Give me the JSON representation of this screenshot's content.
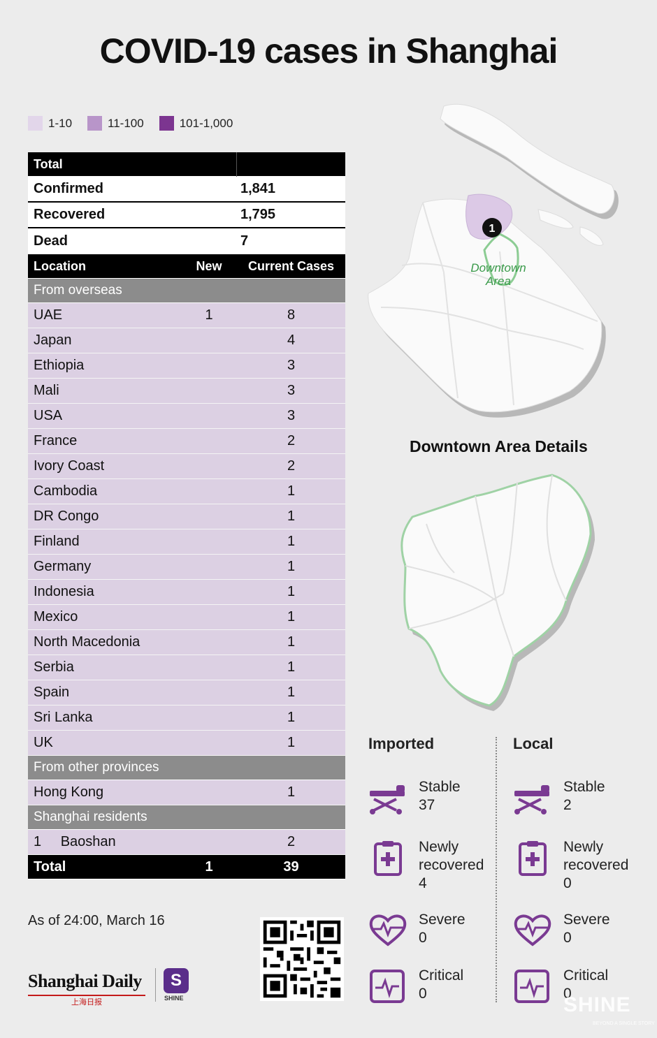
{
  "title": "COVID-19 cases in Shanghai",
  "legend": [
    {
      "label": "1-10",
      "color": "#e2d6ea"
    },
    {
      "label": "11-100",
      "color": "#b895c9"
    },
    {
      "label": "101-1,000",
      "color": "#7c3590"
    }
  ],
  "summary": {
    "header": "Total",
    "rows": [
      {
        "label": "Confirmed",
        "value": "1,841"
      },
      {
        "label": "Recovered",
        "value": "1,795"
      },
      {
        "label": "Dead",
        "value": "7"
      }
    ]
  },
  "columns": {
    "location": "Location",
    "new": "New",
    "current": "Current Cases"
  },
  "overseas": {
    "heading": "From overseas",
    "rows": [
      {
        "name": "UAE",
        "new": "1",
        "current": "8"
      },
      {
        "name": "Japan",
        "new": "",
        "current": "4"
      },
      {
        "name": "Ethiopia",
        "new": "",
        "current": "3"
      },
      {
        "name": "Mali",
        "new": "",
        "current": "3"
      },
      {
        "name": "USA",
        "new": "",
        "current": "3"
      },
      {
        "name": "France",
        "new": "",
        "current": "2"
      },
      {
        "name": "Ivory Coast",
        "new": "",
        "current": "2"
      },
      {
        "name": "Cambodia",
        "new": "",
        "current": "1"
      },
      {
        "name": "DR Congo",
        "new": "",
        "current": "1"
      },
      {
        "name": "Finland",
        "new": "",
        "current": "1"
      },
      {
        "name": "Germany",
        "new": "",
        "current": "1"
      },
      {
        "name": "Indonesia",
        "new": "",
        "current": "1"
      },
      {
        "name": "Mexico",
        "new": "",
        "current": "1"
      },
      {
        "name": "North Macedonia",
        "new": "",
        "current": "1"
      },
      {
        "name": "Serbia",
        "new": "",
        "current": "1"
      },
      {
        "name": "Spain",
        "new": "",
        "current": "1"
      },
      {
        "name": "Sri Lanka",
        "new": "",
        "current": "1"
      },
      {
        "name": "UK",
        "new": "",
        "current": "1"
      }
    ]
  },
  "provinces": {
    "heading": "From other provinces",
    "rows": [
      {
        "name": "Hong Kong",
        "new": "",
        "current": "1"
      }
    ]
  },
  "residents": {
    "heading": "Shanghai residents",
    "rows": [
      {
        "index": "1",
        "name": "Baoshan",
        "new": "",
        "current": "2"
      }
    ]
  },
  "total": {
    "label": "Total",
    "new": "1",
    "current": "39"
  },
  "as_of": "As of 24:00, March 16",
  "logos": {
    "shanghai_daily": "Shanghai Daily",
    "shanghai_daily_cn": "上海日报",
    "shine": "SHINE",
    "watermark": "SHINE",
    "watermark_sub": "BEYOND A SINGLE STORY"
  },
  "map": {
    "marker": "1",
    "downtown_label_1": "Downtown",
    "downtown_label_2": "Area",
    "caption": "Downtown Area Details"
  },
  "imported": {
    "heading": "Imported",
    "stats": [
      {
        "label": "Stable",
        "value": "37",
        "icon": "stretcher-icon"
      },
      {
        "label": "Newly recovered",
        "value": "4",
        "icon": "clipboard-icon"
      },
      {
        "label": "Severe",
        "value": "0",
        "icon": "heartbeat-icon"
      },
      {
        "label": "Critical",
        "value": "0",
        "icon": "monitor-icon"
      }
    ]
  },
  "local": {
    "heading": "Local",
    "stats": [
      {
        "label": "Stable",
        "value": "2",
        "icon": "stretcher-icon"
      },
      {
        "label": "Newly recovered",
        "value": "0",
        "icon": "clipboard-icon"
      },
      {
        "label": "Severe",
        "value": "0",
        "icon": "heartbeat-icon"
      },
      {
        "label": "Critical",
        "value": "0",
        "icon": "monitor-icon"
      }
    ]
  },
  "colors": {
    "accent": "#7a3a92",
    "lilac": "#dcd0e3",
    "downtown_green": "#3a9a4a"
  }
}
